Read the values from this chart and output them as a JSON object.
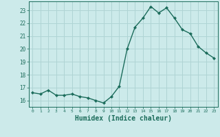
{
  "x": [
    0,
    1,
    2,
    3,
    4,
    5,
    6,
    7,
    8,
    9,
    10,
    11,
    12,
    13,
    14,
    15,
    16,
    17,
    18,
    19,
    20,
    21,
    22,
    23
  ],
  "y": [
    16.6,
    16.5,
    16.8,
    16.4,
    16.4,
    16.5,
    16.3,
    16.2,
    16.0,
    15.8,
    16.3,
    17.1,
    20.0,
    21.7,
    22.4,
    23.3,
    22.8,
    23.2,
    22.4,
    21.5,
    21.2,
    20.2,
    19.7,
    19.3
  ],
  "line_color": "#1a6b5a",
  "marker": "D",
  "marker_size": 2.2,
  "bg_color": "#cceaea",
  "grid_color": "#afd4d4",
  "tick_color": "#1a6b5a",
  "xlabel": "Humidex (Indice chaleur)",
  "xlabel_fontsize": 7,
  "ylabel_ticks": [
    16,
    17,
    18,
    19,
    20,
    21,
    22,
    23
  ],
  "ylim": [
    15.5,
    23.7
  ],
  "xlim": [
    -0.5,
    23.5
  ],
  "linewidth": 1.0
}
